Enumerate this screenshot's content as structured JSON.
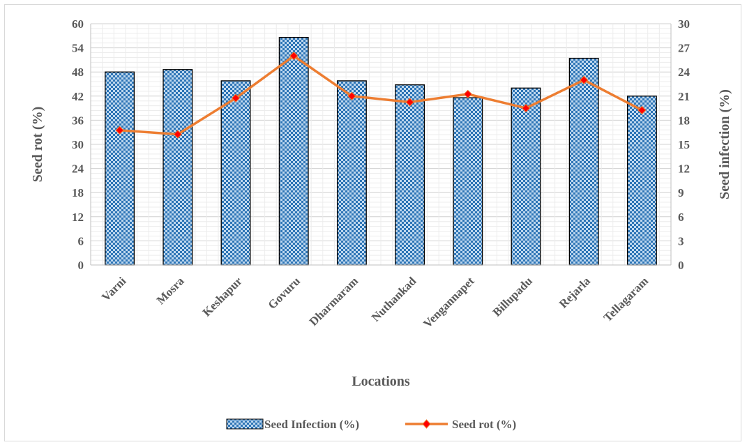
{
  "chart_data": {
    "type": "bar",
    "categories": [
      "Varni",
      "Mosra",
      "Keshapur",
      "Govuru",
      "Dharmaram",
      "Nuthankad",
      "Vengannapet",
      "Billupadu",
      "Rejarla",
      "Tellagaram"
    ],
    "series": [
      {
        "name": "Seed Infection (%)",
        "type": "bar",
        "axis": "right",
        "values": [
          24.0,
          24.3,
          22.9,
          28.3,
          22.9,
          22.4,
          20.8,
          22.0,
          25.7,
          21.0
        ],
        "color": "#9dc3e6",
        "pattern": "checkerboard"
      },
      {
        "name": "Seed rot (%)",
        "type": "line",
        "axis": "left",
        "values": [
          33.5,
          32.5,
          41.5,
          52.0,
          42.0,
          40.5,
          42.5,
          39.0,
          46.0,
          38.5
        ],
        "color": "#ed7d31",
        "marker_color": "#ff0000"
      }
    ],
    "xlabel": "Locations",
    "ylabel_left": "Seed rot (%)",
    "ylabel_right": "Seed infection (%)",
    "ylim_left": [
      0,
      60
    ],
    "ylim_right": [
      0,
      30
    ],
    "yticks_left": [
      0,
      6,
      12,
      18,
      24,
      30,
      36,
      42,
      48,
      54,
      60
    ],
    "yticks_right": [
      0,
      3,
      6,
      9,
      12,
      15,
      18,
      21,
      24,
      27,
      30
    ],
    "grid": true,
    "legend_position": "bottom"
  }
}
